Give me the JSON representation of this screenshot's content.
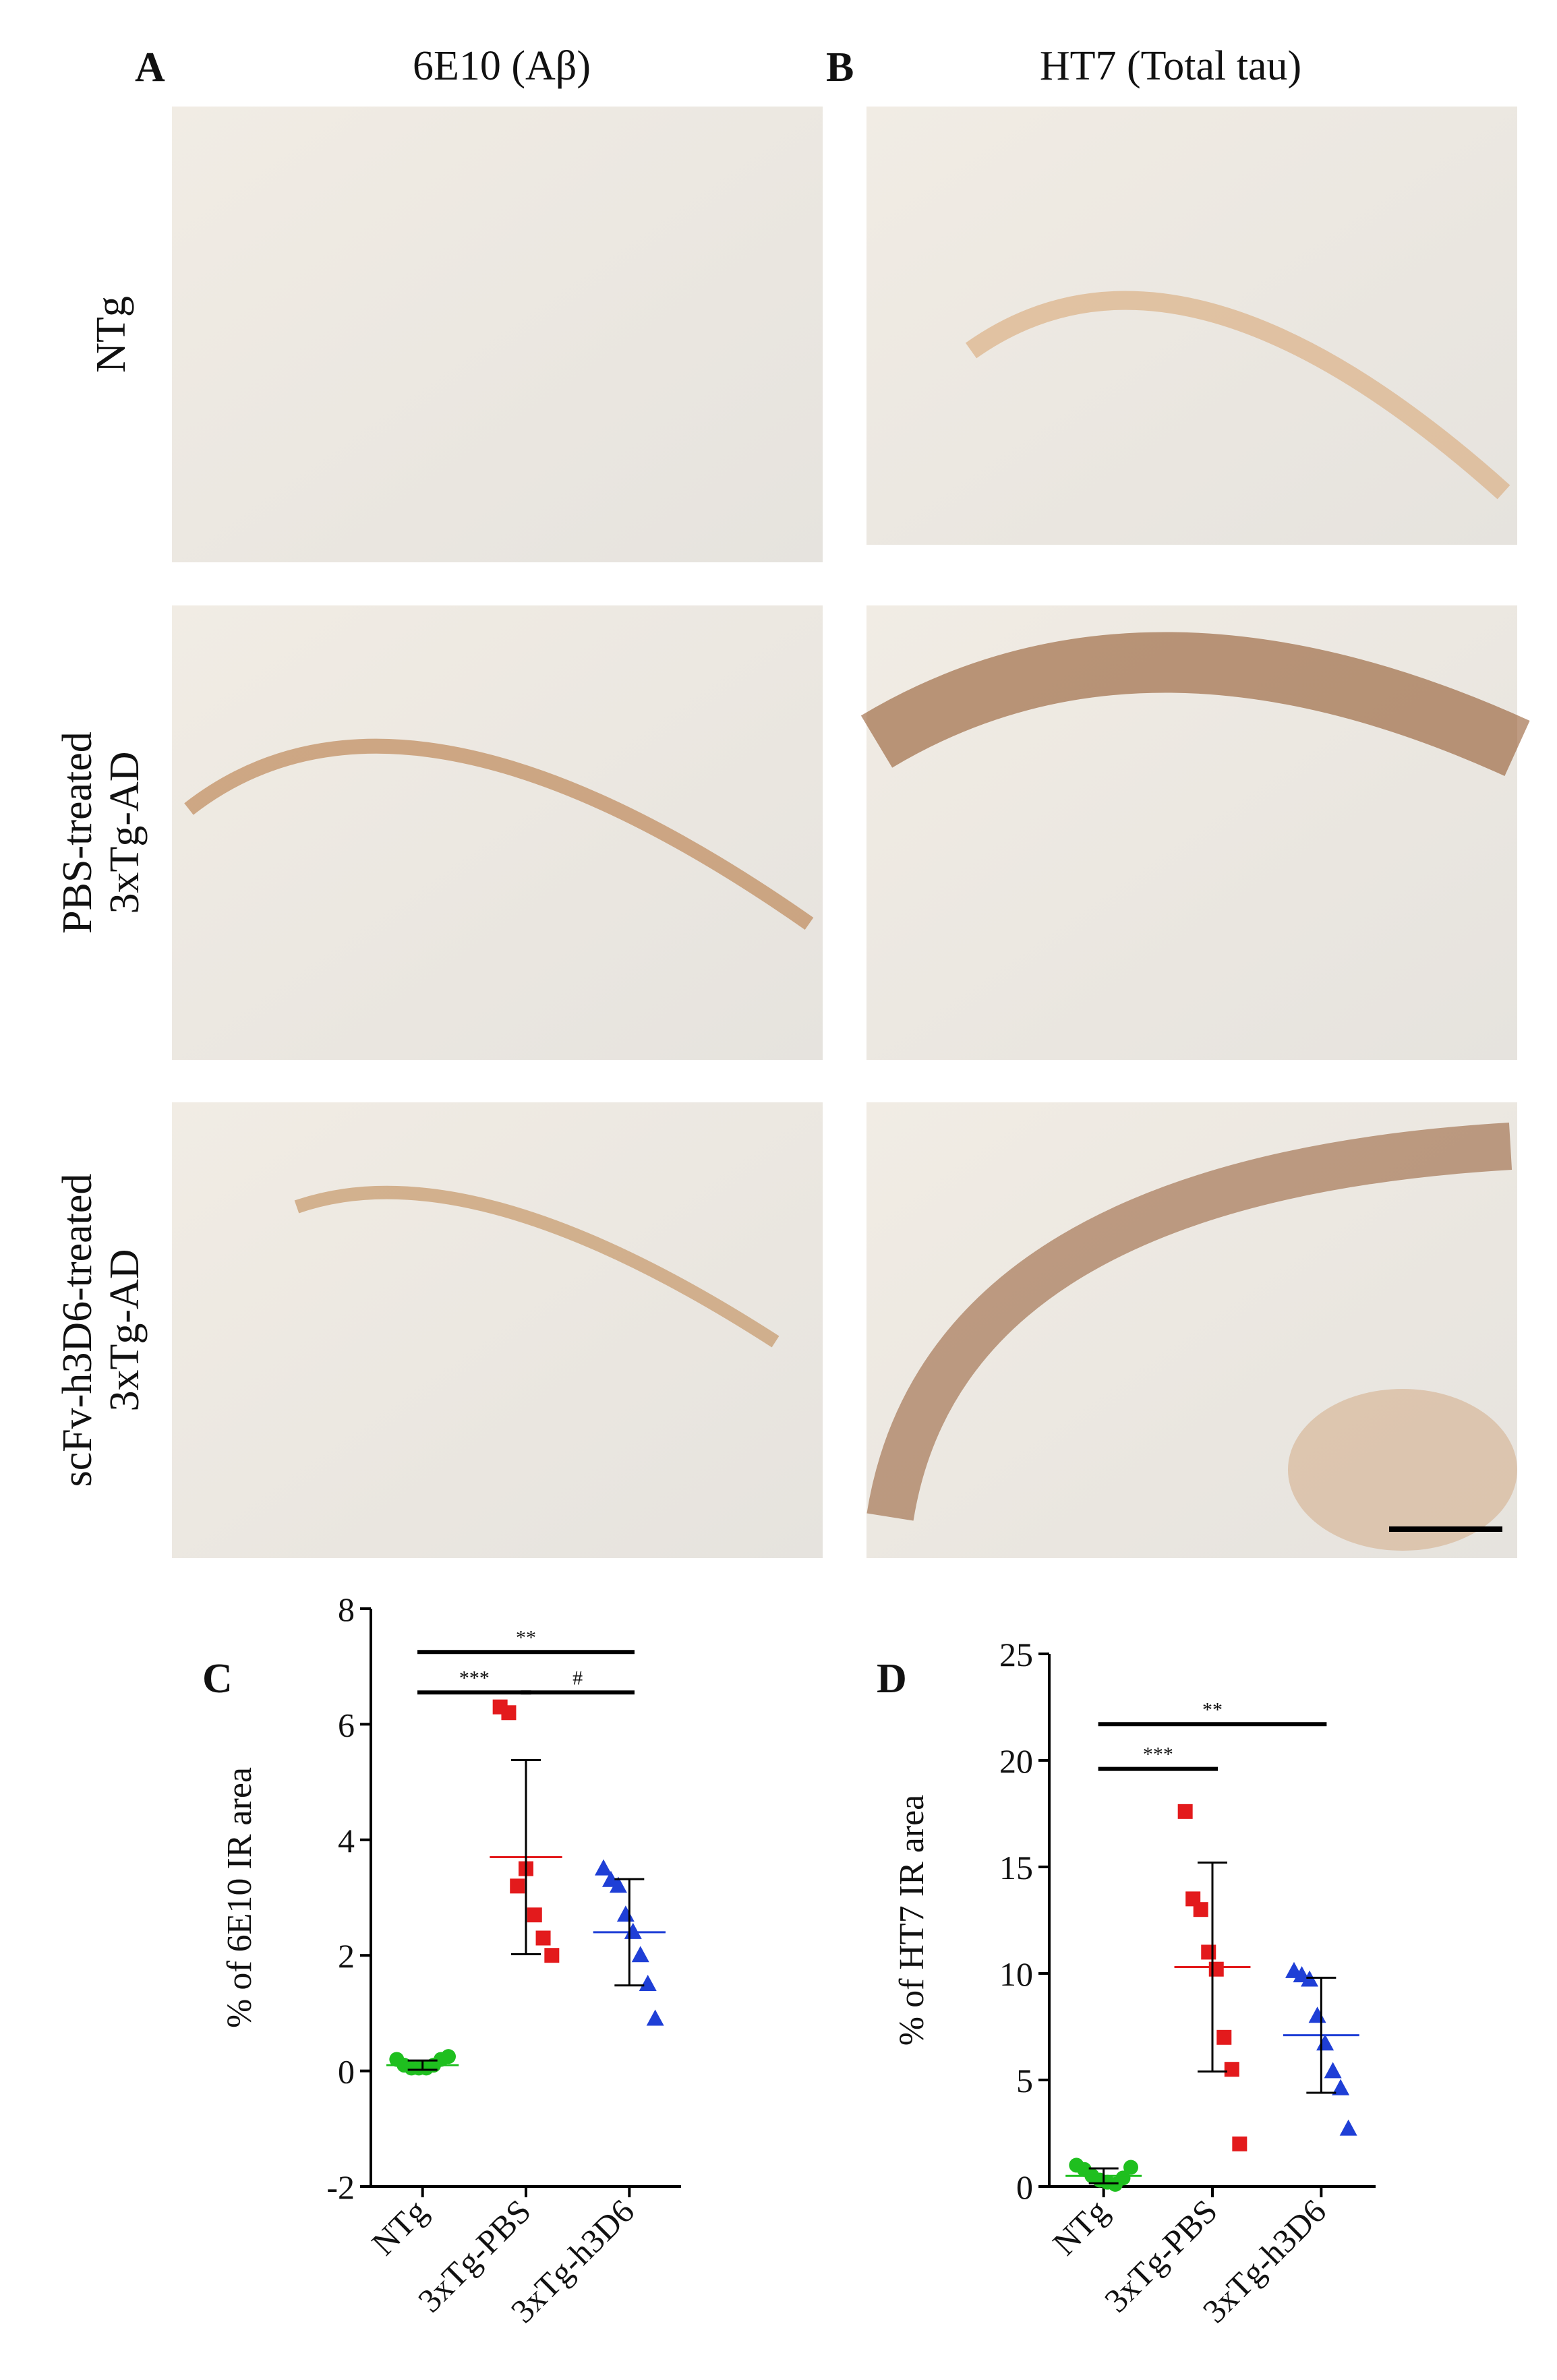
{
  "figure": {
    "panel_a": "A",
    "title_a": "6E10 (Aβ)",
    "panel_b": "B",
    "title_b": "HT7 (Total tau)",
    "row_labels": [
      [
        "NTg"
      ],
      [
        "PBS-treated",
        "3xTg-AD"
      ],
      [
        "scFv-h3D6-treated",
        "3xTg-AD"
      ]
    ]
  },
  "chart_data": [
    {
      "type": "strip",
      "panel": "C",
      "ylabel": "% of 6E10 IR area",
      "categories": [
        "NTg",
        "3xTg-PBS",
        "3xTg-h3D6"
      ],
      "ylim": [
        -2,
        8
      ],
      "yticks": [
        -2,
        0,
        2,
        4,
        6,
        8
      ],
      "series": [
        {
          "name": "NTg",
          "color": "#1fbf1f",
          "marker": "circle",
          "values": [
            0.2,
            0.1,
            0.05,
            0.05,
            0.05,
            0.1,
            0.2,
            0.25
          ],
          "mean": 0.1,
          "error": 0.08
        },
        {
          "name": "3xTg-PBS",
          "color": "#e31a1c",
          "marker": "square",
          "values": [
            6.3,
            6.2,
            3.2,
            3.5,
            2.7,
            2.3,
            2.0
          ],
          "mean": 3.7,
          "error": 1.68
        },
        {
          "name": "3xTg-h3D6",
          "color": "#1f3fd6",
          "marker": "triangle",
          "values": [
            3.5,
            3.3,
            3.2,
            2.7,
            2.4,
            2.0,
            1.5,
            0.9
          ],
          "mean": 2.4,
          "error": 0.92
        }
      ],
      "annotations": [
        {
          "text": "**",
          "from": 0,
          "to": 2,
          "y": 7.25
        },
        {
          "text": "***",
          "from": 0,
          "to": 1,
          "y": 6.55
        },
        {
          "text": "#",
          "from": 1,
          "to": 2,
          "y": 6.55
        }
      ]
    },
    {
      "type": "strip",
      "panel": "D",
      "ylabel": "% of HT7 IR area",
      "categories": [
        "NTg",
        "3xTg-PBS",
        "3xTg-h3D6"
      ],
      "ylim": [
        0,
        25
      ],
      "yticks": [
        0,
        5,
        10,
        15,
        20,
        25
      ],
      "series": [
        {
          "name": "NTg",
          "color": "#1fbf1f",
          "marker": "circle",
          "values": [
            1.0,
            0.8,
            0.5,
            0.3,
            0.2,
            0.1,
            0.4,
            0.9
          ],
          "mean": 0.5,
          "error": 0.35
        },
        {
          "name": "3xTg-PBS",
          "color": "#e31a1c",
          "marker": "square",
          "values": [
            17.6,
            13.5,
            13.0,
            11.0,
            10.2,
            7.0,
            5.5,
            2.0
          ],
          "mean": 10.3,
          "error": 4.9
        },
        {
          "name": "3xTg-h3D6",
          "color": "#1f3fd6",
          "marker": "triangle",
          "values": [
            10.1,
            9.9,
            9.7,
            8.0,
            6.7,
            5.4,
            4.6,
            2.7
          ],
          "mean": 7.1,
          "error": 2.7
        }
      ],
      "annotations": [
        {
          "text": "***",
          "from": 0,
          "to": 1,
          "y": 19.6
        },
        {
          "text": "**",
          "from": 0,
          "to": 2,
          "y": 21.7
        }
      ]
    }
  ]
}
